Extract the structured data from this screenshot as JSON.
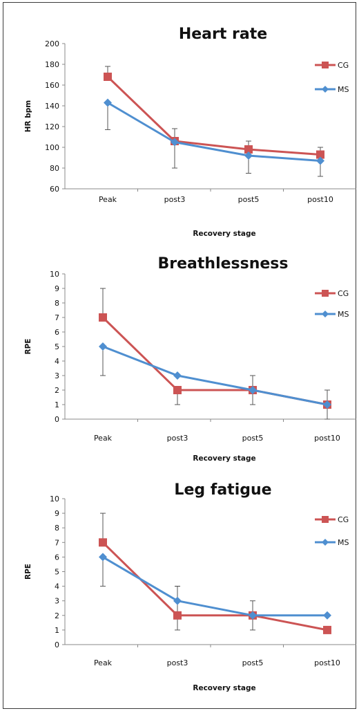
{
  "colors": {
    "CG": "#cc5454",
    "MS": "#4f8fd0",
    "axis": "#888888",
    "error": "#555555"
  },
  "chart_data": [
    {
      "type": "line",
      "title": "Heart rate",
      "xlabel": "Recovery stage",
      "ylabel": "HR bpm",
      "categories": [
        "Peak",
        "post3",
        "post5",
        "post10"
      ],
      "ylim": [
        60,
        200
      ],
      "yticks": [
        60,
        80,
        100,
        120,
        140,
        160,
        180,
        200
      ],
      "grid": false,
      "legend": "right",
      "series": [
        {
          "name": "CG",
          "marker": "square",
          "values": [
            168,
            106,
            98,
            93
          ],
          "error_up": [
            10,
            12,
            8,
            7
          ],
          "error_down": [
            0,
            0,
            0,
            0
          ]
        },
        {
          "name": "MS",
          "marker": "diamond",
          "values": [
            143,
            105,
            92,
            87
          ],
          "error_up": [
            0,
            0,
            0,
            0
          ],
          "error_down": [
            26,
            25,
            17,
            15
          ]
        }
      ]
    },
    {
      "type": "line",
      "title": "Breathlessness",
      "xlabel": "Recovery stage",
      "ylabel": "RPE",
      "categories": [
        "Peak",
        "post3",
        "post5",
        "post10"
      ],
      "ylim": [
        0,
        10
      ],
      "yticks": [
        0,
        1,
        2,
        3,
        4,
        5,
        6,
        7,
        8,
        9,
        10
      ],
      "grid": false,
      "legend": "right",
      "series": [
        {
          "name": "CG",
          "marker": "square",
          "values": [
            7,
            2,
            2,
            1
          ],
          "error_up": [
            2,
            0,
            1,
            1
          ],
          "error_down": [
            0,
            1,
            1,
            1
          ]
        },
        {
          "name": "MS",
          "marker": "diamond",
          "values": [
            5,
            3,
            2,
            1
          ],
          "error_up": [
            0,
            0,
            0,
            0
          ],
          "error_down": [
            2,
            0,
            0,
            0
          ]
        }
      ]
    },
    {
      "type": "line",
      "title": "Leg fatigue",
      "xlabel": "Recovery stage",
      "ylabel": "RPE",
      "categories": [
        "Peak",
        "post3",
        "post5",
        "post10"
      ],
      "ylim": [
        0,
        10
      ],
      "yticks": [
        0,
        1,
        2,
        3,
        4,
        5,
        6,
        7,
        8,
        9,
        10
      ],
      "grid": false,
      "legend": "right",
      "series": [
        {
          "name": "CG",
          "marker": "square",
          "values": [
            7,
            2,
            2,
            1
          ],
          "error_up": [
            2,
            2,
            1,
            0
          ],
          "error_down": [
            0,
            1,
            1,
            0
          ]
        },
        {
          "name": "MS",
          "marker": "diamond",
          "values": [
            6,
            3,
            2,
            2
          ],
          "error_up": [
            0,
            1,
            0,
            0
          ],
          "error_down": [
            2,
            0,
            0,
            0
          ]
        }
      ]
    }
  ]
}
